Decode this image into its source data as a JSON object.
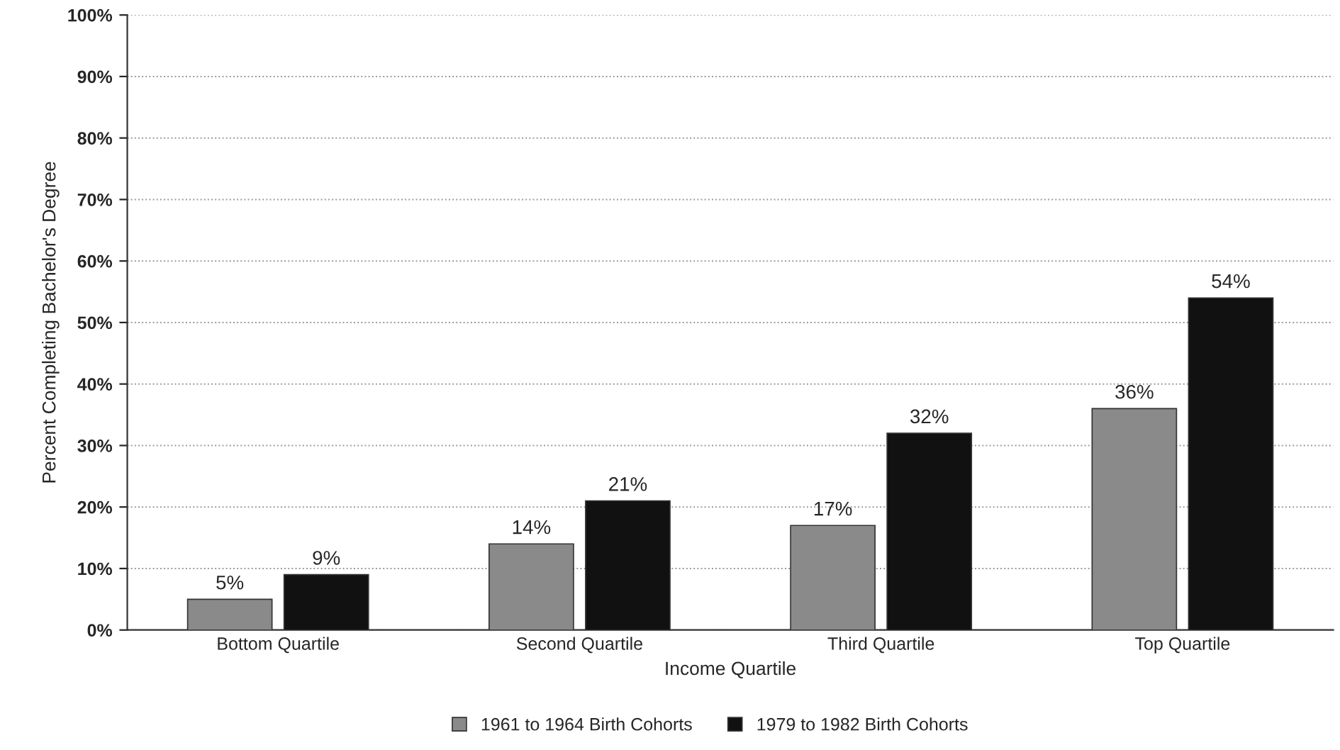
{
  "chart_data": {
    "type": "bar",
    "xlabel": "Income Quartile",
    "ylabel": "Percent Completing Bachelor's Degree",
    "categories": [
      "Bottom Quartile",
      "Second Quartile",
      "Third Quartile",
      "Top Quartile"
    ],
    "series": [
      {
        "name": "1961 to 1964 Birth Cohorts",
        "color": "#8a8a8a",
        "values": [
          5,
          14,
          17,
          36
        ],
        "value_labels": [
          "5%",
          "14%",
          "17%",
          "36%"
        ]
      },
      {
        "name": "1979 to 1982 Birth Cohorts",
        "color": "#111111",
        "values": [
          9,
          21,
          32,
          54
        ],
        "value_labels": [
          "9%",
          "21%",
          "32%",
          "54%"
        ]
      }
    ],
    "ylim": [
      0,
      100
    ],
    "yticks": [
      {
        "value": 0,
        "label": "0%"
      },
      {
        "value": 10,
        "label": "10%"
      },
      {
        "value": 20,
        "label": "20%"
      },
      {
        "value": 30,
        "label": "30%"
      },
      {
        "value": 40,
        "label": "40%"
      },
      {
        "value": 50,
        "label": "50%"
      },
      {
        "value": 60,
        "label": "60%"
      },
      {
        "value": 70,
        "label": "70%"
      },
      {
        "value": 80,
        "label": "80%"
      },
      {
        "value": 90,
        "label": "90%"
      },
      {
        "value": 100,
        "label": "100%"
      }
    ],
    "grid": "y",
    "legend": "bottom"
  }
}
